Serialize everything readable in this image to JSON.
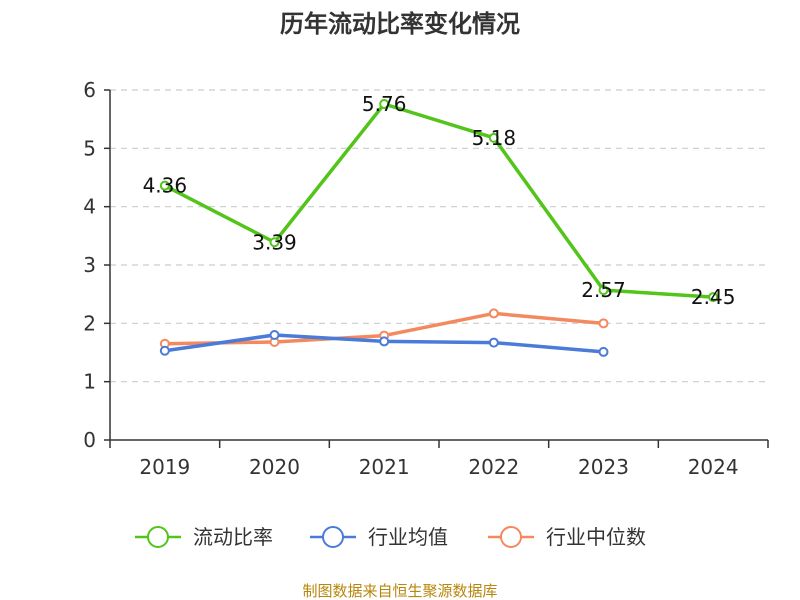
{
  "chart_data": {
    "type": "line",
    "title": "历年流动比率变化情况",
    "categories": [
      "2019",
      "2020",
      "2021",
      "2022",
      "2023",
      "2024"
    ],
    "ylim": [
      0,
      6
    ],
    "yticks": [
      "0",
      "1",
      "2",
      "3",
      "4",
      "5",
      "6"
    ],
    "grid": true,
    "legend_position": "bottom",
    "series": [
      {
        "name": "流动比率",
        "color": "#52c41a",
        "values": [
          4.36,
          3.39,
          5.76,
          5.18,
          2.57,
          2.45
        ],
        "labels": [
          "4.36",
          "3.39",
          "5.76",
          "5.18",
          "2.57",
          "2.45"
        ]
      },
      {
        "name": "行业均值",
        "color": "#4a7bd8",
        "values": [
          1.53,
          1.8,
          1.69,
          1.67,
          1.51,
          null
        ]
      },
      {
        "name": "行业中位数",
        "color": "#f4895f",
        "values": [
          1.65,
          1.68,
          1.79,
          2.17,
          2.0,
          null
        ]
      }
    ]
  },
  "source": "制图数据来自恒生聚源数据库"
}
